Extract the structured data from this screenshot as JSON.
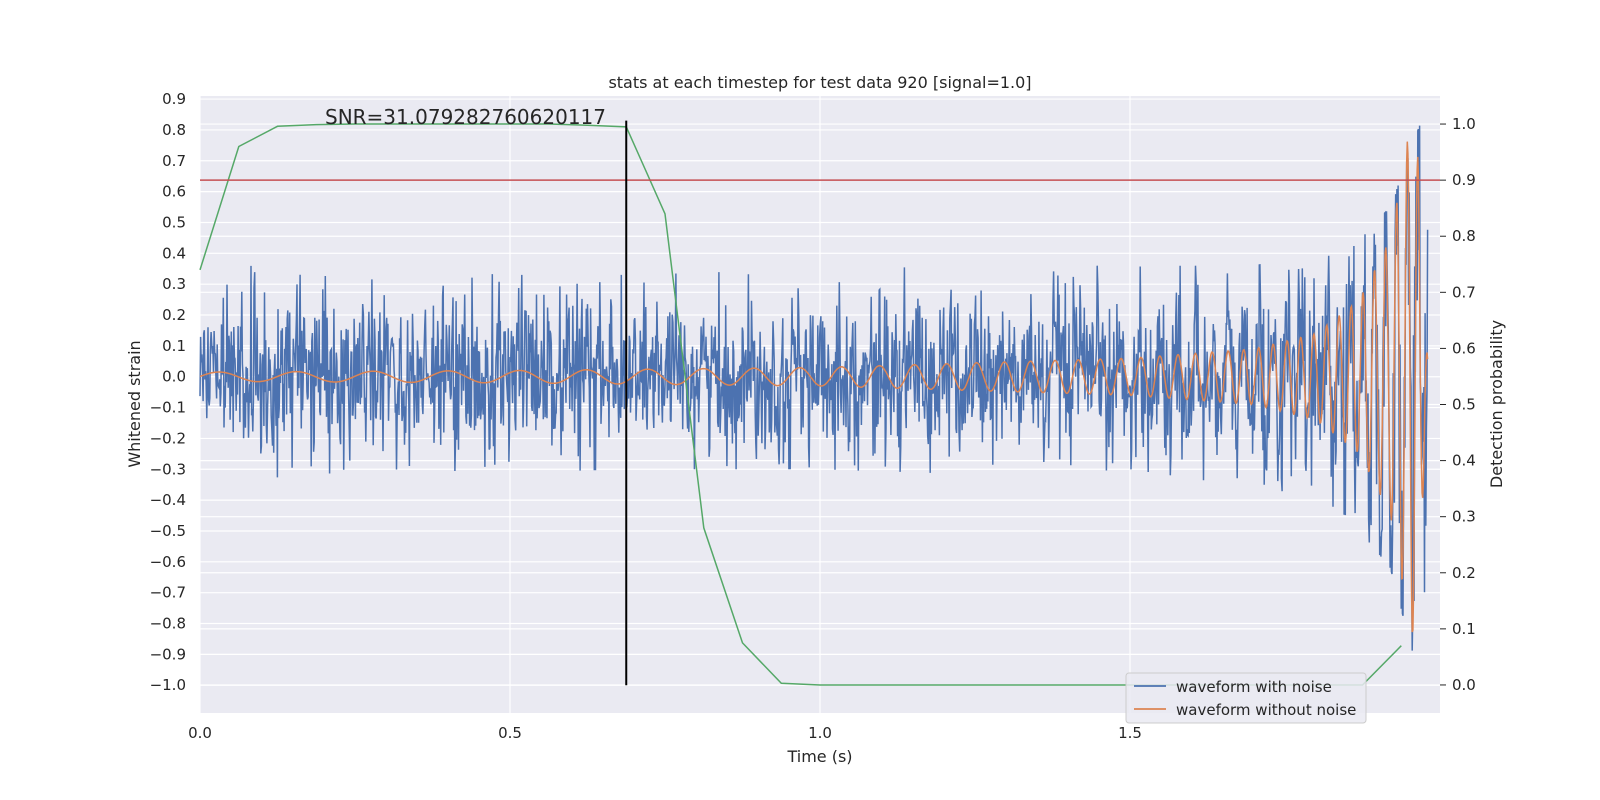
{
  "chart_data": {
    "type": "line",
    "title": "stats at each timestep for test data 920 [signal=1.0]",
    "xlabel": "Time (s)",
    "ylabel_left": "Whitened strain",
    "ylabel_right": "Detection probability",
    "annotation": "SNR=31.079282760620117",
    "xlim": [
      0.0,
      2.0
    ],
    "ylim_left": [
      -1.09,
      0.91
    ],
    "ylim_right": [
      -0.05,
      1.05
    ],
    "x_ticks": [
      0.0,
      0.5,
      1.0,
      1.5
    ],
    "x_tick_labels": [
      "0.0",
      "0.5",
      "1.0",
      "1.5"
    ],
    "y_left_ticks": [
      0.9,
      0.8,
      0.7,
      0.6,
      0.5,
      0.4,
      0.3,
      0.2,
      0.1,
      0.0,
      -0.1,
      -0.2,
      -0.3,
      -0.4,
      -0.5,
      -0.6,
      -0.7,
      -0.8,
      -0.9,
      -1.0
    ],
    "y_left_tick_labels": [
      "0.9",
      "0.8",
      "0.7",
      "0.6",
      "0.5",
      "0.4",
      "0.3",
      "0.2",
      "0.1",
      "0.0",
      "−0.1",
      "−0.2",
      "−0.3",
      "−0.4",
      "−0.5",
      "−0.6",
      "−0.7",
      "−0.8",
      "−0.9",
      "−1.0"
    ],
    "y_right_ticks": [
      1.0,
      0.9,
      0.8,
      0.7,
      0.6,
      0.5,
      0.4,
      0.3,
      0.2,
      0.1,
      0.0
    ],
    "y_right_tick_labels": [
      "1.0",
      "0.9",
      "0.8",
      "0.7",
      "0.6",
      "0.5",
      "0.4",
      "0.3",
      "0.2",
      "0.1",
      "0.0"
    ],
    "grid": true,
    "legend_position": "lower-right",
    "noise_series": {
      "name": "waveform with noise",
      "color": "#4c72b0",
      "std": 0.12,
      "samples": 2000,
      "envelope": [
        {
          "t": 0.0,
          "min": -0.22,
          "max": 0.31
        },
        {
          "t": 0.1,
          "min": -0.33,
          "max": 0.42
        },
        {
          "t": 0.3,
          "min": -0.3,
          "max": 0.35
        },
        {
          "t": 0.5,
          "min": -0.31,
          "max": 0.33
        },
        {
          "t": 0.7,
          "min": -0.3,
          "max": 0.33
        },
        {
          "t": 1.0,
          "min": -0.3,
          "max": 0.35
        },
        {
          "t": 1.3,
          "min": -0.32,
          "max": 0.36
        },
        {
          "t": 1.5,
          "min": -0.3,
          "max": 0.36
        },
        {
          "t": 1.7,
          "min": -0.36,
          "max": 0.36
        },
        {
          "t": 1.85,
          "min": -0.45,
          "max": 0.4
        },
        {
          "t": 1.92,
          "min": -0.62,
          "max": 0.55
        },
        {
          "t": 1.97,
          "min": -1.0,
          "max": 0.83
        }
      ]
    },
    "clean_series": {
      "name": "waveform without noise",
      "color": "#dd8452",
      "amplitude_points": [
        [
          0.0,
          0.015
        ],
        [
          0.5,
          0.02
        ],
        [
          1.0,
          0.03
        ],
        [
          1.5,
          0.06
        ],
        [
          1.7,
          0.09
        ],
        [
          1.8,
          0.14
        ],
        [
          1.87,
          0.25
        ],
        [
          1.92,
          0.45
        ],
        [
          1.955,
          0.85
        ],
        [
          1.965,
          0.7
        ],
        [
          1.98,
          0.06
        ],
        [
          2.0,
          0.0
        ]
      ],
      "frequency_hz_start": 8,
      "frequency_hz_end": 60,
      "chirp_end_time": 1.965,
      "noise_samples": 2000
    },
    "probability_series": {
      "color": "#55a868",
      "x": [
        0.0,
        0.0625,
        0.125,
        0.1875,
        0.25,
        0.3125,
        0.375,
        0.4375,
        0.5,
        0.5625,
        0.625,
        0.6875,
        0.75,
        0.8125,
        0.875,
        0.9375,
        1.0,
        1.0625,
        1.125,
        1.1875,
        1.25,
        1.3125,
        1.375,
        1.4375,
        1.5,
        1.5625,
        1.625,
        1.6875,
        1.75,
        1.8125,
        1.875,
        1.9375
      ],
      "y": [
        0.74,
        0.96,
        0.996,
        0.999,
        1.0,
        1.0,
        1.0,
        1.0,
        1.0,
        1.0,
        0.998,
        0.995,
        0.84,
        0.28,
        0.075,
        0.003,
        0.0,
        0.0,
        0.0,
        0.0,
        0.0,
        0.0,
        0.0,
        0.0,
        0.0,
        0.0,
        0.0,
        0.0,
        0.0,
        0.0,
        0.0,
        0.07
      ]
    },
    "threshold": {
      "value": 0.9,
      "axis": "right",
      "color": "#c44e52"
    },
    "marker_line": {
      "x": 0.6875,
      "y_from": -1.0,
      "y_to": 0.83,
      "color": "#000000"
    },
    "legend": [
      {
        "label": "waveform with noise",
        "color": "#4c72b0"
      },
      {
        "label": "waveform without noise",
        "color": "#dd8452"
      }
    ]
  }
}
